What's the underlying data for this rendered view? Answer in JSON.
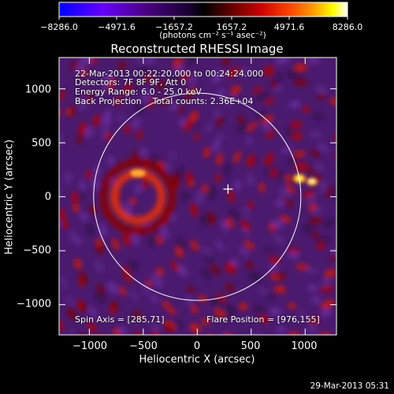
{
  "colorbar": {
    "tick_labels": [
      "−8286.0",
      "−4971.6",
      "−1657.2",
      "1657.2",
      "4971.6",
      "8286.0"
    ],
    "units": "(photons cm⁻² s⁻¹ asec⁻²)",
    "colors": [
      "#0000ff",
      "#6600ff",
      "#4b0082",
      "#1a0033",
      "#000000",
      "#660000",
      "#cc0000",
      "#ff4400",
      "#ff9900",
      "#ffff00",
      "#ffffff"
    ]
  },
  "image": {
    "title": "Reconstructed RHESSI Image",
    "info_lines": [
      "22-Mar-2013 00:22:20.000 to 00:24:24.000",
      "Detectors: 7F 8F 9F, Att 0",
      "Energy Range: 6.0 - 25.0 keV",
      "Back Projection    Total counts: 2.36E+04"
    ],
    "spin_axis": "Spin Axis = [285,71]",
    "flare_position": "Flare Position = [976,155]",
    "timestamp": "29-Mar-2013 05:31"
  },
  "chart_data": {
    "type": "heatmap",
    "title": "Reconstructed RHESSI Image",
    "xlabel": "Heliocentric X (arcsec)",
    "ylabel": "Heliocentric Y (arcsec)",
    "xlim": [
      -1280,
      1290
    ],
    "ylim": [
      -1280,
      1290
    ],
    "x_ticks": [
      "−1000",
      "−500",
      "0",
      "500",
      "1000"
    ],
    "y_ticks": [
      "1000",
      "500",
      "0",
      "−500",
      "−1000"
    ],
    "x_tick_values": [
      -1000,
      -500,
      0,
      500,
      1000
    ],
    "y_tick_values": [
      1000,
      500,
      0,
      -500,
      -1000
    ],
    "solar_limb_radius": 960,
    "spin_axis": [
      285,
      71
    ],
    "flare_position": [
      976,
      155
    ],
    "colorbar_range": [
      -8286.0,
      8286.0
    ]
  }
}
